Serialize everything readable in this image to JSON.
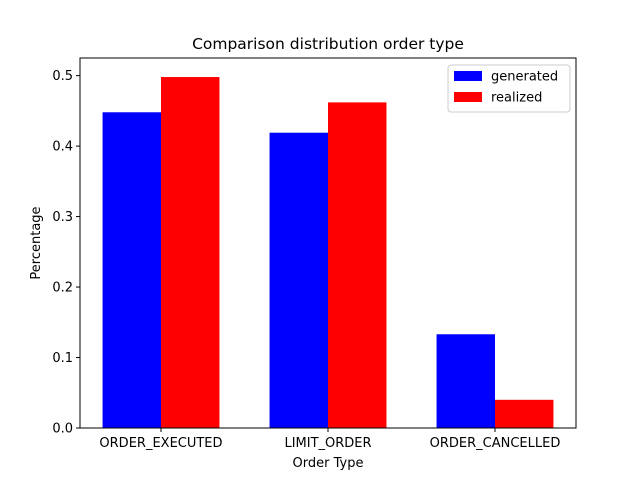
{
  "chart_data": {
    "type": "bar",
    "title": "Comparison distribution order type",
    "xlabel": "Order Type",
    "ylabel": "Percentage",
    "categories": [
      "ORDER_EXECUTED",
      "LIMIT_ORDER",
      "ORDER_CANCELLED"
    ],
    "series": [
      {
        "name": "generated",
        "values": [
          0.448,
          0.419,
          0.133
        ],
        "color": "#0000ff"
      },
      {
        "name": "realized",
        "values": [
          0.498,
          0.462,
          0.04
        ],
        "color": "#ff0000"
      }
    ],
    "ylim": [
      0,
      0.525
    ],
    "yticks": [
      0.0,
      0.1,
      0.2,
      0.3,
      0.4,
      0.5
    ],
    "ytick_labels": [
      "0.0",
      "0.1",
      "0.2",
      "0.3",
      "0.4",
      "0.5"
    ],
    "grid": false,
    "legend_position": "top-right"
  }
}
